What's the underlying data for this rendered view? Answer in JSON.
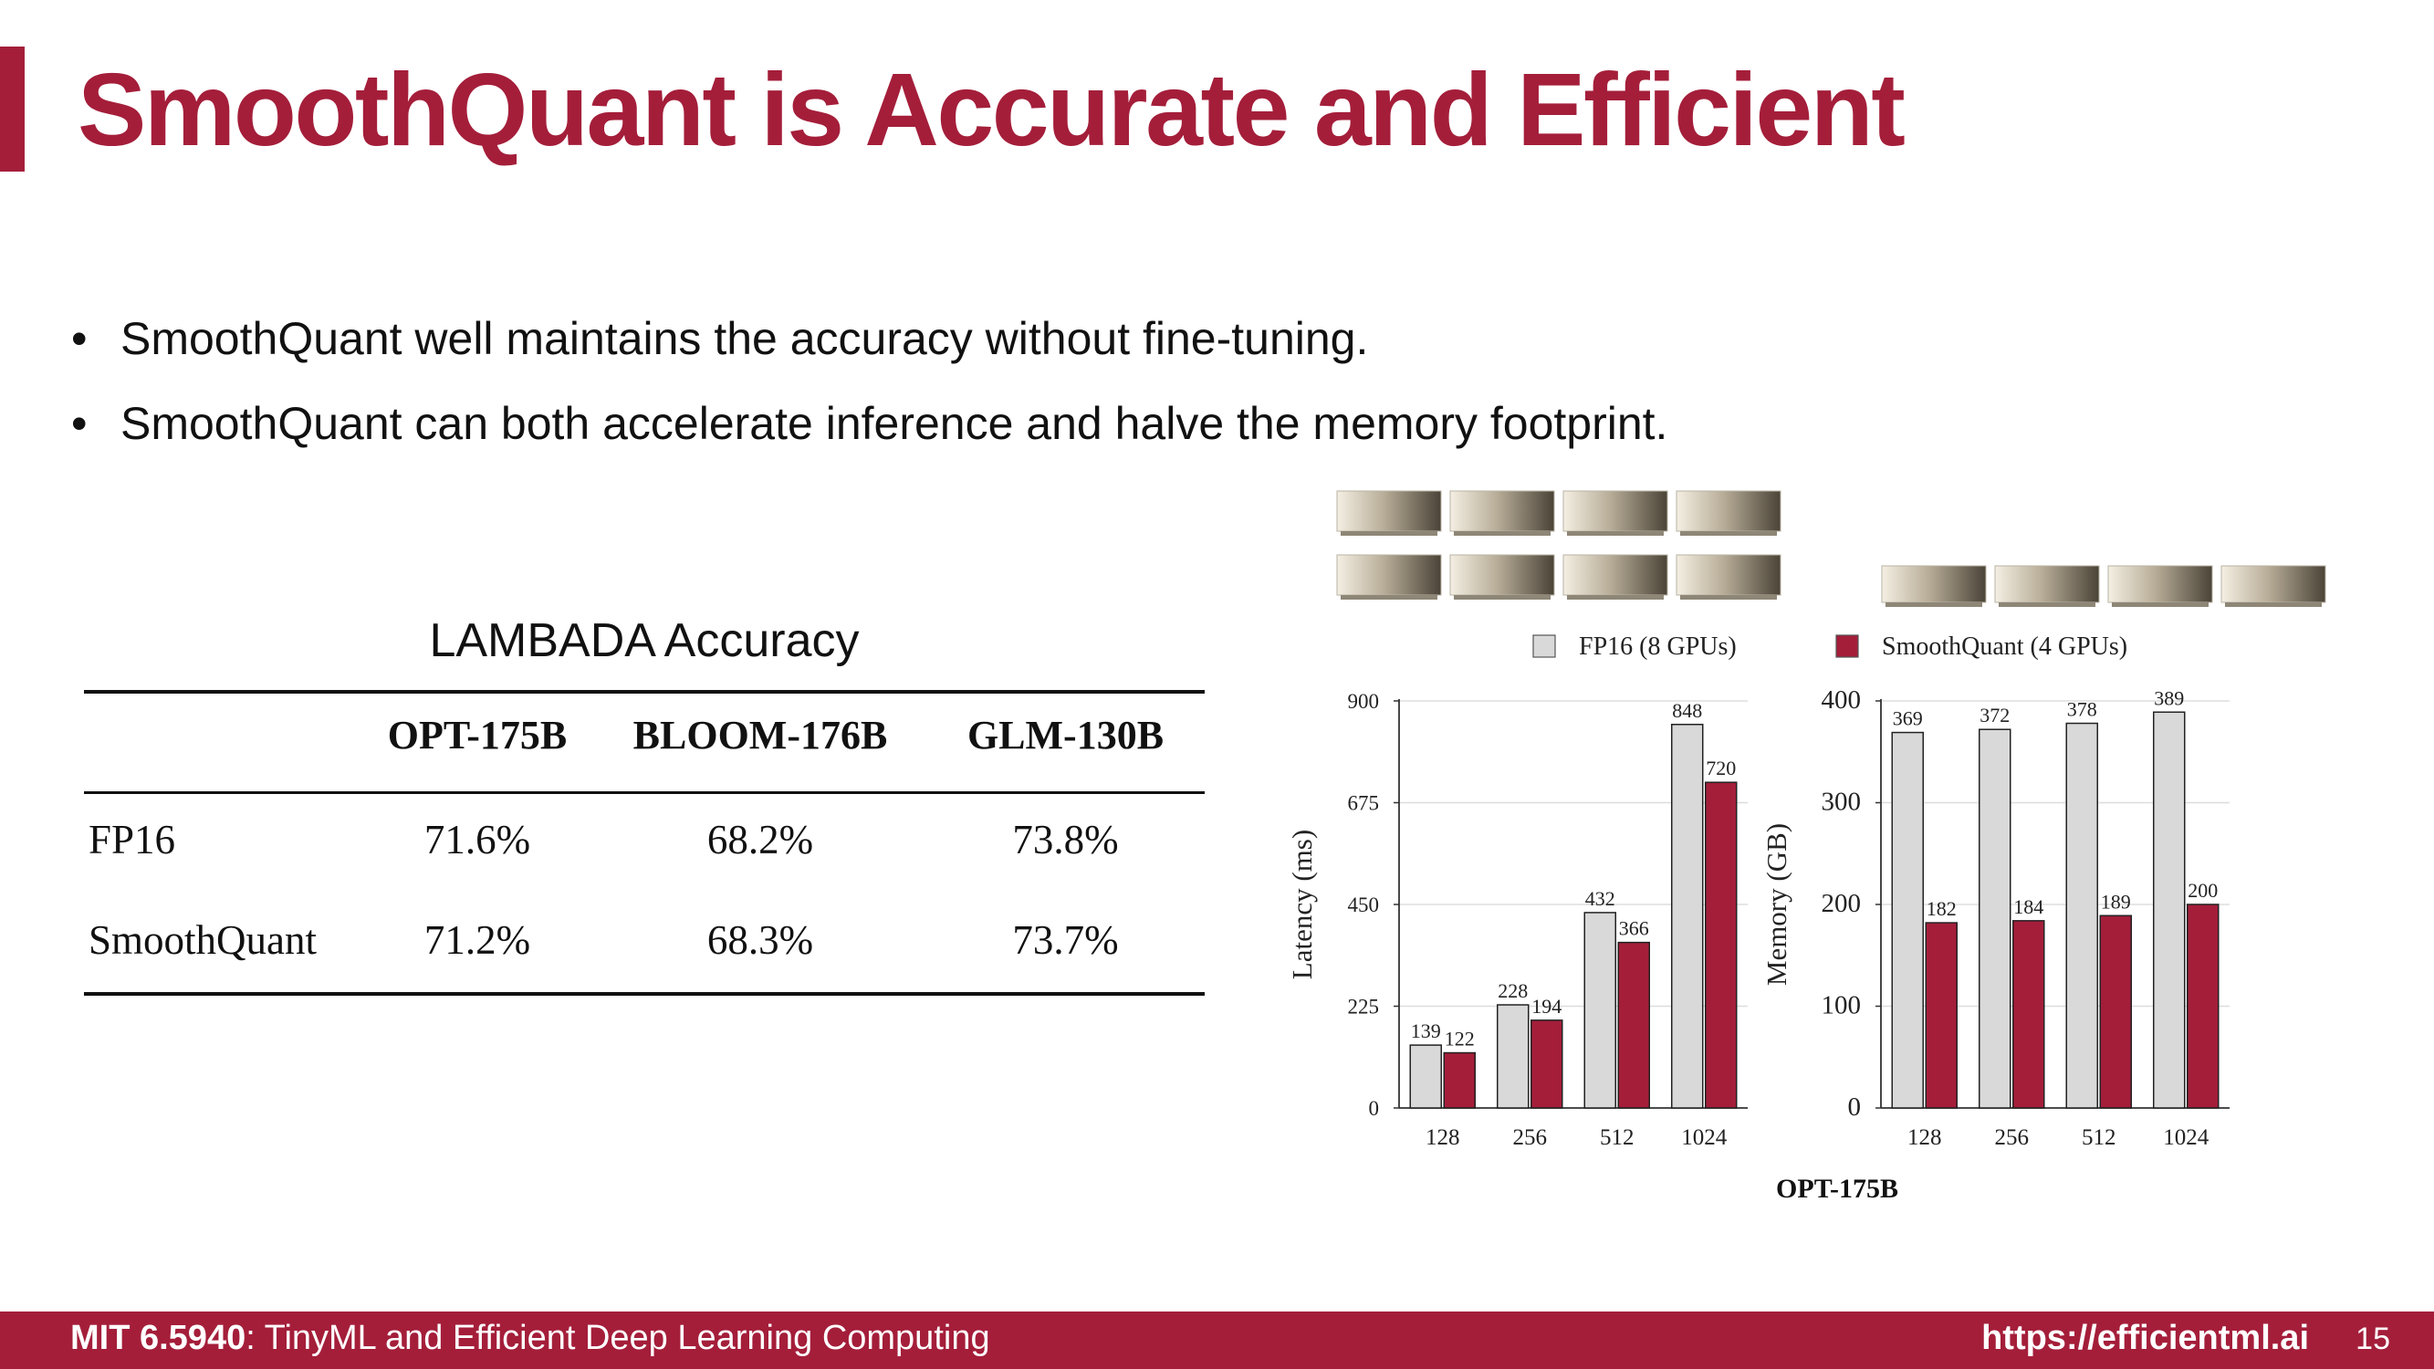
{
  "slide": {
    "title": "SmoothQuant is Accurate and Efficient",
    "bullets": [
      "SmoothQuant well maintains the accuracy without fine-tuning.",
      "SmoothQuant can both accelerate inference and halve the memory footprint."
    ]
  },
  "table": {
    "title": "LAMBADA Accuracy",
    "columns": [
      "OPT-175B",
      "BLOOM-176B",
      "GLM-130B"
    ],
    "rows": [
      {
        "label": "FP16",
        "values": [
          "71.6%",
          "68.2%",
          "73.8%"
        ]
      },
      {
        "label": "SmoothQuant",
        "values": [
          "71.2%",
          "68.3%",
          "73.7%"
        ]
      }
    ]
  },
  "colors": {
    "accent": "#a41e3a",
    "fp16_bar": "#d9d9d9",
    "smoothquant_bar": "#a41e3a"
  },
  "icons": [
    "gpu-card-icon"
  ],
  "chart_data": [
    {
      "type": "bar",
      "title": "",
      "xlabel": "OPT-175B",
      "ylabel": "Latency (ms)",
      "categories": [
        "128",
        "256",
        "512",
        "1024"
      ],
      "ylim": [
        0,
        900
      ],
      "yticks": [
        "0",
        "225",
        "450",
        "675",
        "900"
      ],
      "grid": true,
      "legend": "top",
      "series": [
        {
          "name": "FP16 (8 GPUs)",
          "values": [
            139,
            228,
            432,
            848
          ]
        },
        {
          "name": "SmoothQuant (4 GPUs)",
          "values": [
            122,
            194,
            366,
            720
          ]
        }
      ]
    },
    {
      "type": "bar",
      "title": "",
      "xlabel": "OPT-175B",
      "ylabel": "Memory (GB)",
      "categories": [
        "128",
        "256",
        "512",
        "1024"
      ],
      "ylim": [
        0,
        400
      ],
      "yticks": [
        "0",
        "100",
        "200",
        "300",
        "400"
      ],
      "grid": true,
      "legend": "top",
      "series": [
        {
          "name": "FP16 (8 GPUs)",
          "values": [
            369,
            372,
            378,
            389
          ]
        },
        {
          "name": "SmoothQuant (4 GPUs)",
          "values": [
            182,
            184,
            189,
            200
          ]
        }
      ]
    }
  ],
  "footer": {
    "course_code": "MIT 6.5940",
    "course_name": ": TinyML and Efficient Deep Learning Computing",
    "url": "https://efficientml.ai",
    "page": "15"
  }
}
